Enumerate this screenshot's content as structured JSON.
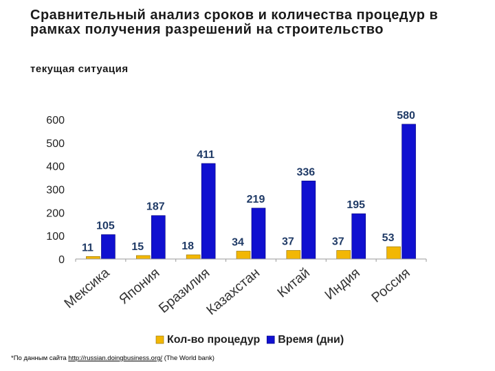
{
  "header": {
    "title": "Сравнительный анализ сроков и количества процедур в рамках получения разрешений на строительство",
    "subtitle": "текущая ситуация"
  },
  "footnote": {
    "prefix": "*По данным сайта ",
    "link": "http://russian.doingbusiness.org/",
    "suffix": " (The World bank)"
  },
  "chart_data": {
    "type": "bar",
    "categories": [
      "Мексика",
      "Япония",
      "Бразилия",
      "Казахстан",
      "Китай",
      "Индия",
      "Россия"
    ],
    "series": [
      {
        "name": "Кол-во процедур",
        "values": [
          11,
          15,
          18,
          34,
          37,
          37,
          53
        ],
        "color": "#F2B705"
      },
      {
        "name": "Время (дни)",
        "values": [
          105,
          187,
          411,
          219,
          336,
          195,
          580
        ],
        "color": "#1010D0"
      }
    ],
    "yticks": [
      0,
      100,
      200,
      300,
      400,
      500,
      600
    ],
    "ylim": [
      0,
      600
    ],
    "grid": false,
    "legend_position": "bottom"
  }
}
